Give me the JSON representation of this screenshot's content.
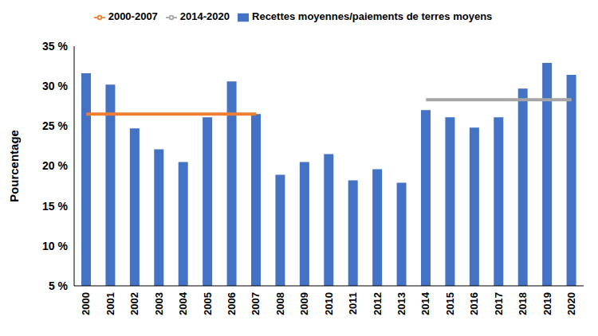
{
  "chart_data": {
    "type": "bar",
    "y_label": "Pourcentage",
    "categories": [
      "2000",
      "2001",
      "2002",
      "2003",
      "2004",
      "2005",
      "2006",
      "2007",
      "2008",
      "2009",
      "2010",
      "2011",
      "2012",
      "2013",
      "2014",
      "2015",
      "2016",
      "2017",
      "2018",
      "2019",
      "2020"
    ],
    "series": [
      {
        "name": "Recettes moyennes/paiements de terres moyens",
        "type": "bar",
        "color": "#4472c4",
        "values": [
          31.6,
          30.2,
          24.7,
          22.1,
          20.5,
          26.1,
          30.6,
          26.5,
          18.9,
          20.5,
          21.5,
          18.2,
          19.6,
          17.9,
          27.0,
          26.1,
          24.8,
          26.1,
          29.7,
          32.9,
          31.4
        ]
      },
      {
        "name": "2000-2007",
        "type": "line",
        "color": "#ed7d31",
        "values": [
          26.5,
          26.5,
          26.5,
          26.5,
          26.5,
          26.5,
          26.5,
          26.5,
          null,
          null,
          null,
          null,
          null,
          null,
          null,
          null,
          null,
          null,
          null,
          null,
          null
        ]
      },
      {
        "name": "2014-2020",
        "type": "line",
        "color": "#a5a5a5",
        "values": [
          null,
          null,
          null,
          null,
          null,
          null,
          null,
          null,
          null,
          null,
          null,
          null,
          null,
          null,
          28.3,
          28.3,
          28.3,
          28.3,
          28.3,
          28.3,
          28.3
        ]
      }
    ],
    "ylim": [
      5,
      35
    ],
    "yticks": [
      {
        "value": 5,
        "label": "5 %"
      },
      {
        "value": 10,
        "label": "10 %"
      },
      {
        "value": 15,
        "label": "15 %"
      },
      {
        "value": 20,
        "label": "20 %"
      },
      {
        "value": 25,
        "label": "25 %"
      },
      {
        "value": 30,
        "label": "30 %"
      },
      {
        "value": 35,
        "label": "35 %"
      }
    ],
    "grid": false,
    "legend": "top"
  }
}
